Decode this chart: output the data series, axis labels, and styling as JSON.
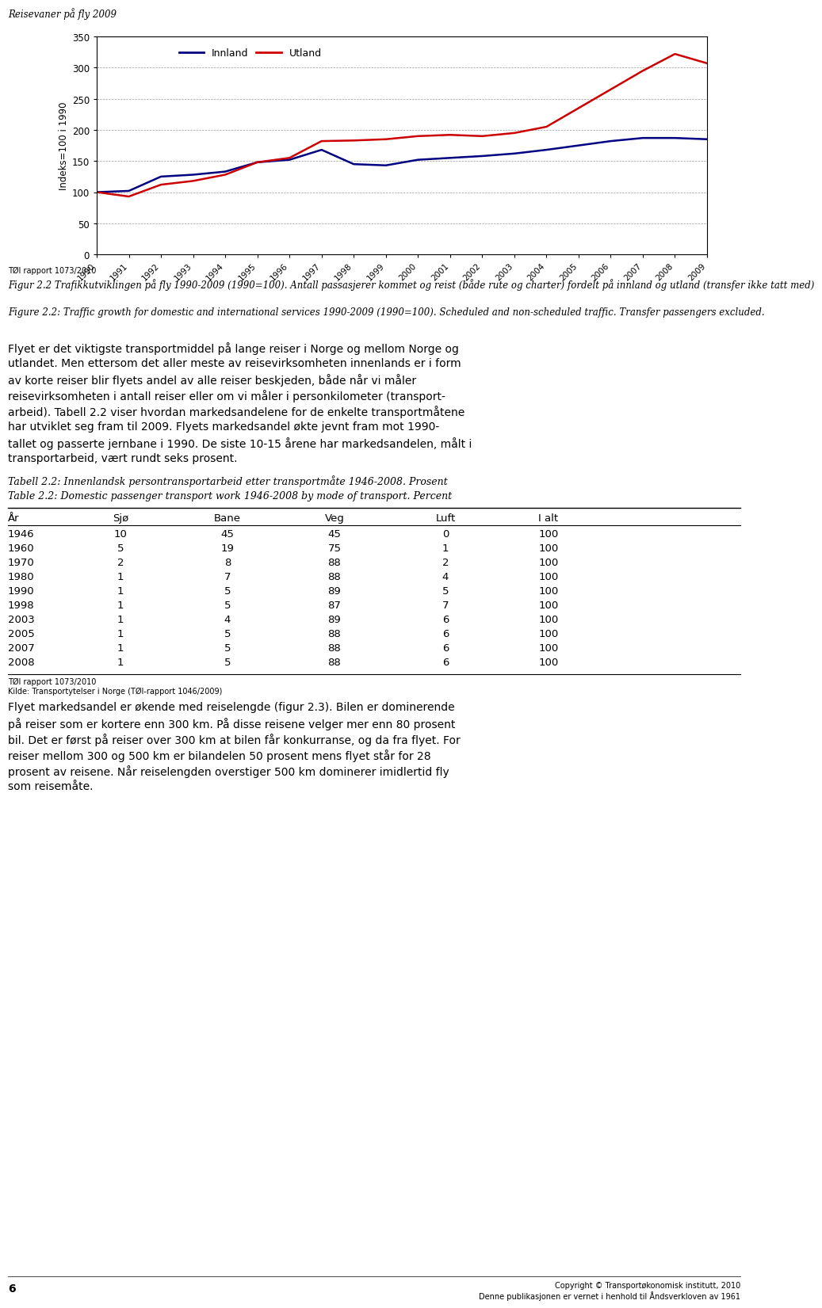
{
  "page_title": "Reisevaner på fly 2009",
  "years": [
    1990,
    1991,
    1992,
    1993,
    1994,
    1995,
    1996,
    1997,
    1998,
    1999,
    2000,
    2001,
    2002,
    2003,
    2004,
    2005,
    2006,
    2007,
    2008,
    2009
  ],
  "innland": [
    100,
    102,
    125,
    128,
    133,
    148,
    152,
    168,
    145,
    143,
    152,
    155,
    158,
    162,
    168,
    175,
    182,
    187,
    187,
    185
  ],
  "utland": [
    100,
    93,
    112,
    118,
    128,
    148,
    155,
    182,
    183,
    185,
    190,
    192,
    190,
    195,
    205,
    235,
    265,
    295,
    322,
    307
  ],
  "innland_color": "#000080",
  "utland_color": "#cc0000",
  "ylabel": "Indeks=100 i 1990",
  "ylim": [
    0,
    350
  ],
  "yticks": [
    0,
    50,
    100,
    150,
    200,
    250,
    300,
    350
  ],
  "legend_innland": "Innland",
  "legend_utland": "Utland",
  "source_line": "TØI rapport 1073/2010",
  "fig_caption_no": "Figur 2.2 Trafikkutviklingen på fly 1990-2009 (1990=100). Antall passasjerer kommet og reist (både rute og charter) fordelt på innland og utland (transfer ikke tatt med)",
  "fig_caption_en": "Figure 2.2: Traffic growth for domestic and international services 1990-2009 (1990=100). Scheduled and non-scheduled traffic. Transfer passengers excluded.",
  "body_text_lines": [
    "Flyet er det viktigste transportmiddel på lange reiser i Norge og mellom Norge og",
    "utlandet. Men ettersom det aller meste av reisevirksomheten innenlands er i form",
    "av korte reiser blir flyets andel av alle reiser beskjeden, både når vi måler",
    "reisevirksomheten i antall reiser eller om vi måler i personkilometer (transport-",
    "arbeid). Tabell 2.2 viser hvordan markedsandelene for de enkelte transportmåtene",
    "har utviklet seg fram til 2009. Flyets markedsandel økte jevnt fram mot 1990-",
    "tallet og passerte jernbane i 1990. De siste 10-15 årene har markedsandelen, målt i",
    "transportarbeid, vært rundt seks prosent."
  ],
  "tabell_caption_no": "Tabell 2.2: Innenlandsk persontransportarbeid etter transportmåte 1946-2008. Prosent",
  "tabell_caption_en": "Table 2.2: Domestic passenger transport work 1946-2008 by mode of transport. Percent",
  "table_headers": [
    "År",
    "Sjø",
    "Bane",
    "Veg",
    "Luft",
    "I alt"
  ],
  "table_data": [
    [
      1946,
      10,
      45,
      45,
      0,
      100
    ],
    [
      1960,
      5,
      19,
      75,
      1,
      100
    ],
    [
      1970,
      2,
      8,
      88,
      2,
      100
    ],
    [
      1980,
      1,
      7,
      88,
      4,
      100
    ],
    [
      1990,
      1,
      5,
      89,
      5,
      100
    ],
    [
      1998,
      1,
      5,
      87,
      7,
      100
    ],
    [
      2003,
      1,
      4,
      89,
      6,
      100
    ],
    [
      2005,
      1,
      5,
      88,
      6,
      100
    ],
    [
      2007,
      1,
      5,
      88,
      6,
      100
    ],
    [
      2008,
      1,
      5,
      88,
      6,
      100
    ]
  ],
  "table_source": "TØI rapport 1073/2010",
  "kilde_line": "Kilde: Transportytelser i Norge (TØI-rapport 1046/2009)",
  "bottom_text_lines": [
    "Flyet markedsandel er økende med reiselengde (figur 2.3). Bilen er dominerende",
    "på reiser som er kortere enn 300 km. På disse reisene velger mer enn 80 prosent",
    "bil. Det er først på reiser over 300 km at bilen får konkurranse, og da fra flyet. For",
    "reiser mellom 300 og 500 km er bilandelen 50 prosent mens flyet står for 28",
    "prosent av reisene. Når reiselengden overstiger 500 km dominerer imidlertid fly",
    "som reisemåte."
  ],
  "page_number": "6",
  "footer_right1": "Copyright © Transportøkonomisk institutt, 2010",
  "footer_right2": "Denne publikasjonen er vernet i henhold til Åndsverkloven av 1961"
}
